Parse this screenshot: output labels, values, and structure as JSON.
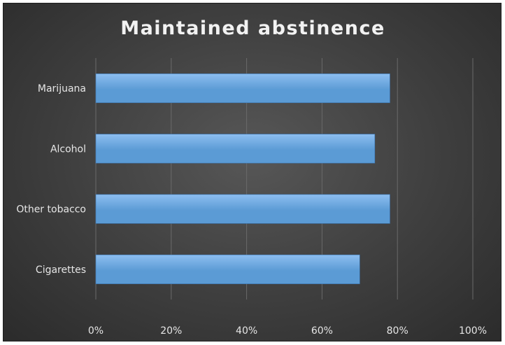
{
  "chart_data": {
    "type": "bar",
    "orientation": "horizontal",
    "title": "Maintained abstinence",
    "categories": [
      "Marijuana",
      "Alcohol",
      "Other tobacco",
      "Cigarettes"
    ],
    "series": [
      {
        "values": [
          0.78,
          0.74,
          0.78,
          0.7
        ]
      }
    ],
    "xlim": [
      0,
      1
    ],
    "x_ticks": [
      0,
      0.2,
      0.4,
      0.6,
      0.8,
      1.0
    ],
    "x_tick_labels": [
      "0%",
      "20%",
      "40%",
      "60%",
      "80%",
      "100%"
    ],
    "grid": "vertical",
    "legend": "none",
    "colors": {
      "bar_fill": "#5b9bd5",
      "bar_fill_light": "#8dbef0",
      "background": "#3f3f3f",
      "gridline": "#6a6a6a",
      "text": "#e6e6e6"
    }
  }
}
